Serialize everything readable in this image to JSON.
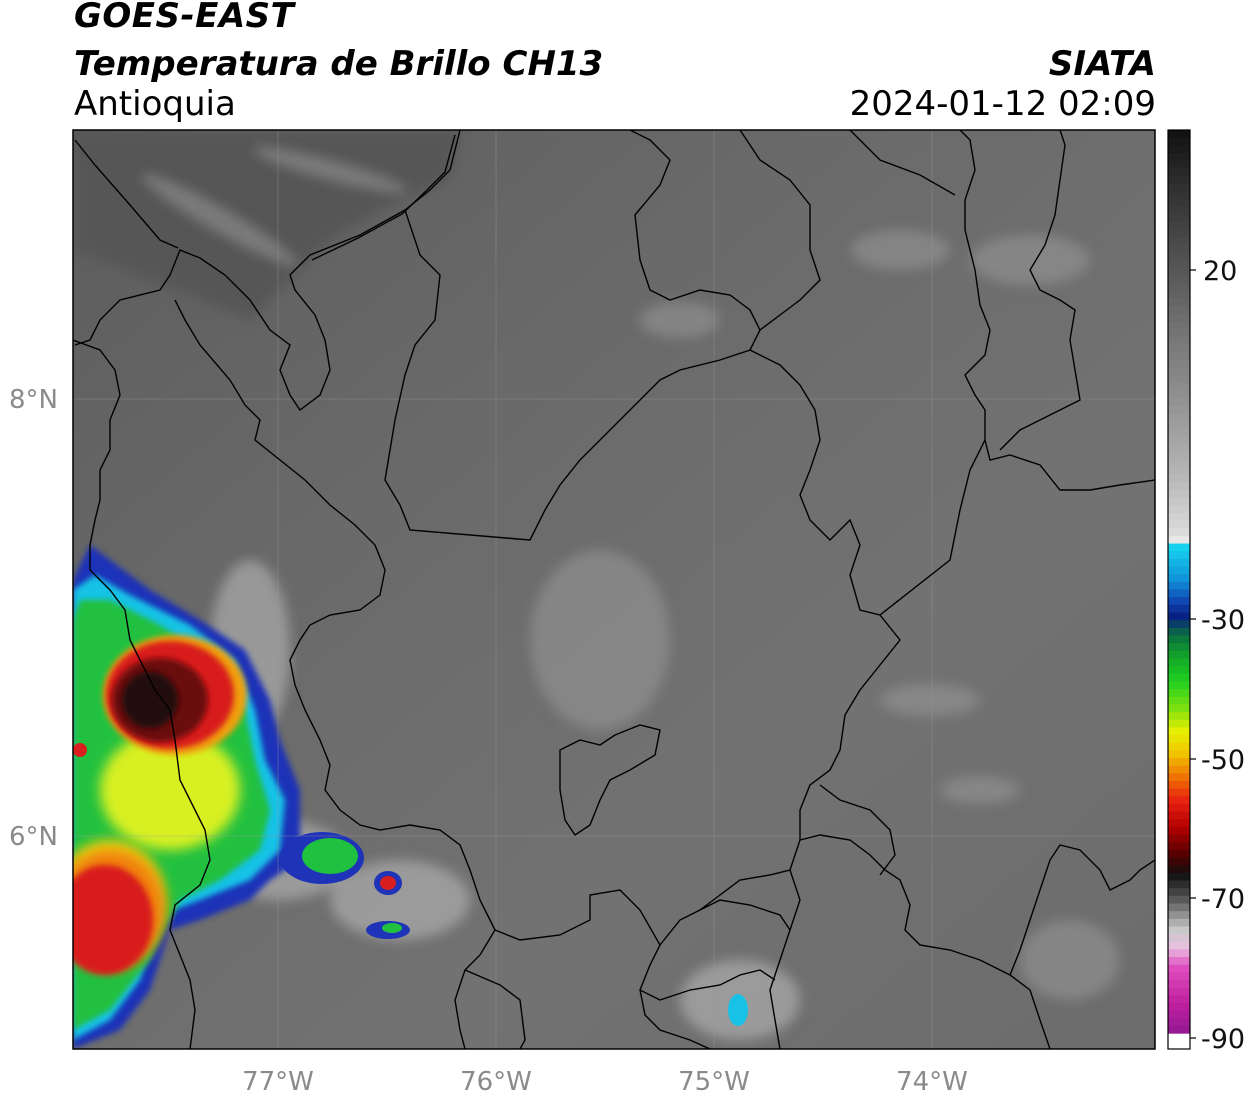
{
  "header": {
    "satellite": "GOES-EAST",
    "product": "Temperatura de Brillo CH13",
    "region": "Antioquia",
    "organization": "SIATA",
    "datetime": "2024-01-12 02:09"
  },
  "axes": {
    "lon_labels": [
      "77°W",
      "76°W",
      "75°W",
      "74°W"
    ],
    "lat_labels": [
      "8°N",
      "6°N"
    ]
  },
  "colorbar": {
    "tick_labels": [
      "20",
      "-30",
      "-50",
      "-70",
      "-90"
    ],
    "range": [
      -90,
      40
    ]
  },
  "colors": {
    "background_gray": "#6e6e6e",
    "boundary_line": "#000000",
    "cold_red": "#d81e1e",
    "green": "#2bd62b",
    "yellow": "#f2f20a",
    "cyan": "#1ad7f2"
  }
}
